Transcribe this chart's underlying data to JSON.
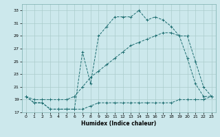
{
  "title": "",
  "xlabel": "Humidex (Indice chaleur)",
  "bg_color": "#cce8ec",
  "grid_color": "#aacccc",
  "line_color": "#1a6b6e",
  "xlim": [
    -0.5,
    23.5
  ],
  "ylim": [
    17,
    34
  ],
  "yticks": [
    17,
    19,
    21,
    23,
    25,
    27,
    29,
    31,
    33
  ],
  "xticks": [
    0,
    1,
    2,
    3,
    4,
    5,
    6,
    7,
    8,
    9,
    10,
    11,
    12,
    13,
    14,
    15,
    16,
    17,
    18,
    19,
    20,
    21,
    22,
    23
  ],
  "line1_x": [
    0,
    1,
    2,
    3,
    4,
    5,
    6,
    7,
    8,
    9,
    10,
    11,
    12,
    13,
    14,
    15,
    16,
    17,
    18,
    19,
    20,
    21,
    22,
    23
  ],
  "line1_y": [
    19.5,
    18.5,
    18.5,
    17.5,
    17.5,
    17.5,
    17.5,
    17.5,
    18,
    18.5,
    18.5,
    18.5,
    18.5,
    18.5,
    18.5,
    18.5,
    18.5,
    18.5,
    18.5,
    19,
    19,
    19,
    19,
    19.5
  ],
  "line2_x": [
    0,
    1,
    2,
    3,
    4,
    5,
    6,
    7,
    8,
    9,
    10,
    11,
    12,
    13,
    14,
    15,
    16,
    17,
    18,
    19,
    20,
    21,
    22,
    23
  ],
  "line2_y": [
    19.5,
    18.5,
    18.5,
    17.5,
    17.5,
    17.5,
    17.5,
    26.5,
    21.5,
    29,
    30.5,
    32,
    32,
    32,
    33,
    31.5,
    32,
    31.5,
    30.5,
    29,
    29,
    25,
    21,
    19.5
  ],
  "line3_x": [
    0,
    1,
    2,
    3,
    4,
    5,
    6,
    7,
    8,
    9,
    10,
    11,
    12,
    13,
    14,
    15,
    16,
    17,
    18,
    19,
    20,
    21,
    22,
    23
  ],
  "line3_y": [
    19.5,
    19,
    19,
    19,
    19,
    19,
    19.5,
    21,
    22.5,
    23.5,
    24.5,
    25.5,
    26.5,
    27.5,
    28,
    28.5,
    29,
    29.5,
    29.5,
    29,
    25.5,
    21.5,
    19.5,
    19.5
  ]
}
